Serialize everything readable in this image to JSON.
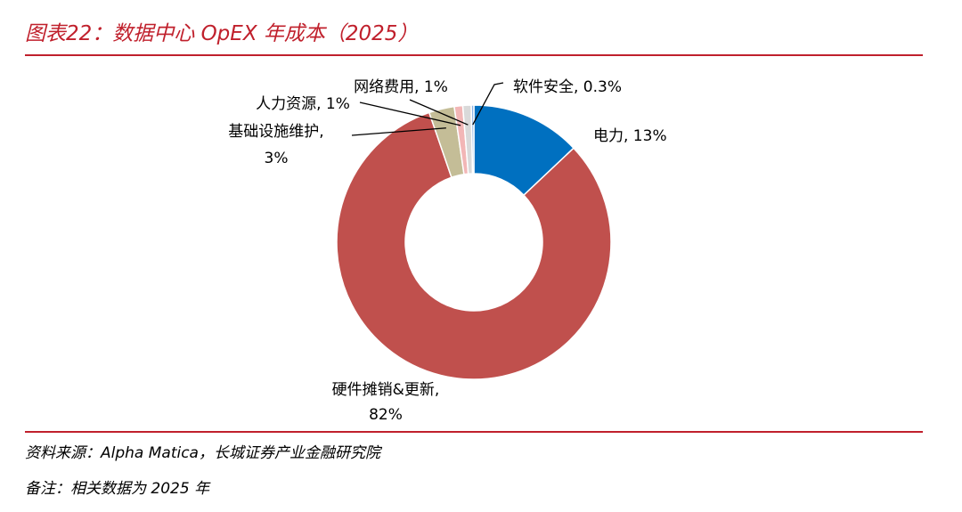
{
  "title": "图表22：数据中心 OpEX 年成本（2025）",
  "source": "资料来源：Alpha Matica，长城证券产业金融研究院",
  "remark": "备注：相关数据为 2025 年",
  "chart_data": {
    "type": "pie",
    "subtype": "donut",
    "legend": "none",
    "slices": [
      {
        "label": "电力",
        "value": 13,
        "display": "13%",
        "color": "#0070c0"
      },
      {
        "label": "硬件摊销&更新",
        "value": 82,
        "display": "82%",
        "color": "#c0504d"
      },
      {
        "label": "基础设施维护",
        "value": 3,
        "display": "3%",
        "color": "#c4bd97"
      },
      {
        "label": "人力资源",
        "value": 1,
        "display": "1%",
        "color": "#f2b6b6"
      },
      {
        "label": "网络费用",
        "value": 1,
        "display": "1%",
        "color": "#d9d9d9"
      },
      {
        "label": "软件安全",
        "value": 0.3,
        "display": "0.3%",
        "color": "#8db3e2"
      }
    ]
  }
}
